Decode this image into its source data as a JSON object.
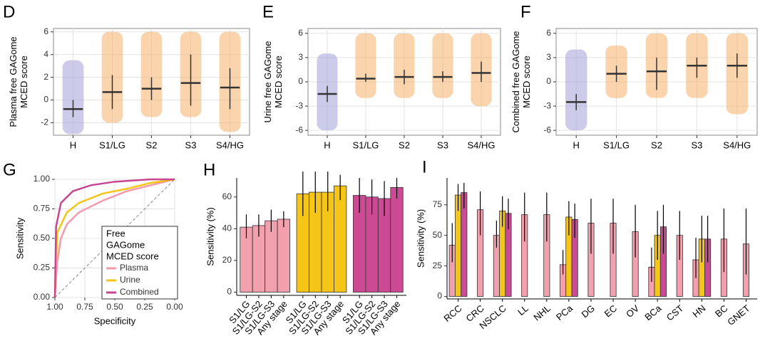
{
  "chart_data": [
    {
      "type": "crossbar",
      "panel": "D",
      "ylabel": [
        "Plasma free GAGome",
        "MCED score"
      ],
      "categories": [
        "H",
        "S1/LG",
        "S2",
        "S3",
        "S4/HG"
      ],
      "colors": [
        "#a3a3d8",
        "#f5b06a",
        "#f5b06a",
        "#f5b06a",
        "#f5b06a"
      ],
      "values": [
        -0.8,
        0.7,
        1.0,
        1.5,
        1.1
      ],
      "low": [
        -1.5,
        -0.8,
        0,
        -0.5,
        -0.8
      ],
      "high": [
        0,
        2.2,
        2,
        4,
        2.8
      ],
      "point_min": [
        -3,
        -2,
        -1.5,
        -1.5,
        -2.8
      ],
      "point_max": [
        3.5,
        6,
        6,
        6,
        6
      ],
      "ylim": [
        -3.1,
        6.3
      ],
      "yticks": [
        -2,
        0,
        2,
        4,
        6
      ],
      "grid": true
    },
    {
      "type": "crossbar",
      "panel": "E",
      "ylabel": [
        "Urine free GAGome",
        "MCED score"
      ],
      "categories": [
        "H",
        "S1/LG",
        "S2",
        "S3",
        "S4/HG"
      ],
      "colors": [
        "#a3a3d8",
        "#f5b06a",
        "#f5b06a",
        "#f5b06a",
        "#f5b06a"
      ],
      "values": [
        -1.5,
        0.4,
        0.6,
        0.6,
        1.1
      ],
      "low": [
        -2.5,
        0,
        -0.3,
        0,
        0
      ],
      "high": [
        -0.5,
        1,
        1.5,
        1.3,
        2.5
      ],
      "point_min": [
        -6,
        -2,
        -2,
        -2,
        -3
      ],
      "point_max": [
        3.5,
        6,
        6,
        6,
        6
      ],
      "ylim": [
        -6.6,
        6.6
      ],
      "yticks": [
        -6,
        -3,
        0,
        3,
        6
      ],
      "grid": true
    },
    {
      "type": "crossbar",
      "panel": "F",
      "ylabel": [
        "Combined free GAGome",
        "MCED score"
      ],
      "categories": [
        "H",
        "S1/LG",
        "S2",
        "S3",
        "S4/HG"
      ],
      "colors": [
        "#a3a3d8",
        "#f5b06a",
        "#f5b06a",
        "#f5b06a",
        "#f5b06a"
      ],
      "values": [
        -2.5,
        1.0,
        1.3,
        2.0,
        2.0
      ],
      "low": [
        -3.5,
        0,
        -1,
        0.5,
        0.5
      ],
      "high": [
        -1.5,
        2,
        3,
        3,
        3.5
      ],
      "point_min": [
        -6,
        -2,
        -2,
        -2,
        -4
      ],
      "point_max": [
        4,
        4.5,
        6,
        6,
        6
      ],
      "ylim": [
        -6.6,
        6.6
      ],
      "yticks": [
        -6,
        -3,
        0,
        3,
        6
      ],
      "grid": true
    },
    {
      "type": "line",
      "panel": "G",
      "xlabel": "Specificity",
      "ylabel": [
        "Sensitivity"
      ],
      "legend_title": [
        "Free",
        "GAGome",
        "MCED score"
      ],
      "series": [
        {
          "name": "Plasma",
          "color": "#f49aab",
          "x": [
            1,
            0.98,
            0.95,
            0.9,
            0.8,
            0.6,
            0.4,
            0.2,
            0
          ],
          "values": [
            0,
            0.3,
            0.5,
            0.62,
            0.72,
            0.82,
            0.9,
            0.95,
            1
          ]
        },
        {
          "name": "Urine",
          "color": "#f5c518",
          "x": [
            1,
            0.98,
            0.9,
            0.8,
            0.6,
            0.4,
            0.2,
            0
          ],
          "values": [
            0,
            0.55,
            0.72,
            0.8,
            0.88,
            0.92,
            0.97,
            1
          ]
        },
        {
          "name": "Combined",
          "color": "#c84592",
          "x": [
            1,
            0.99,
            0.95,
            0.85,
            0.7,
            0.5,
            0.2,
            0
          ],
          "values": [
            0,
            0.6,
            0.8,
            0.9,
            0.95,
            0.98,
            1,
            1
          ]
        }
      ],
      "xlim": [
        1,
        0
      ],
      "ylim": [
        0,
        1
      ],
      "xticks": [
        {
          "value": 1,
          "label": "1.00"
        },
        {
          "value": 0.75,
          "label": "0.75"
        },
        {
          "value": 0.5,
          "label": "0.50"
        },
        {
          "value": 0.25,
          "label": "0.25"
        },
        {
          "value": 0,
          "label": "0.00"
        }
      ],
      "yticks": [
        {
          "value": 0,
          "label": "0.00"
        },
        {
          "value": 0.25,
          "label": "0.25"
        },
        {
          "value": 0.5,
          "label": "0.50"
        },
        {
          "value": 0.75,
          "label": "0.75"
        },
        {
          "value": 1,
          "label": "1.00"
        }
      ],
      "grid": true,
      "legend": "bottom-right"
    },
    {
      "type": "groupbar",
      "panel": "H",
      "ylabel": [
        "Sensitivity (%)"
      ],
      "categories": [
        "S1/LG",
        "S1/LG-S2",
        "S1/LG-S3",
        "Any stage"
      ],
      "series": [
        {
          "name": "Plasma",
          "color": "#f29fae",
          "values": [
            41,
            42,
            45,
            46
          ],
          "low": [
            34,
            35,
            38,
            41
          ],
          "high": [
            49,
            49,
            52,
            51
          ]
        },
        {
          "name": "Urine",
          "color": "#f5c518",
          "values": [
            62,
            63,
            63,
            67
          ],
          "low": [
            48,
            50,
            51,
            58
          ],
          "high": [
            76,
            76,
            76,
            74
          ]
        },
        {
          "name": "Combined",
          "color": "#cc4a94",
          "values": [
            61,
            60,
            59,
            66
          ],
          "low": [
            50,
            49,
            48,
            59
          ],
          "high": [
            72,
            71,
            70,
            72
          ]
        }
      ],
      "ylim": [
        -2,
        72
      ],
      "yticks": [
        0,
        20,
        40,
        60
      ],
      "grid": false
    },
    {
      "type": "bar",
      "panel": "I",
      "ylabel": [
        "Sensitivity (%)"
      ],
      "categories": [
        "RCC",
        "CRC",
        "NSCLC",
        "LL",
        "NHL",
        "PCa",
        "DG",
        "EC",
        "OV",
        "BCa",
        "CST",
        "HN",
        "BC",
        "GNET"
      ],
      "series": [
        {
          "name": "Plasma",
          "color": "#f29fae",
          "values": [
            42,
            71,
            50,
            67,
            67,
            26,
            60,
            60,
            53,
            24,
            50,
            30,
            47,
            43
          ],
          "low": [
            28,
            50,
            40,
            45,
            45,
            18,
            35,
            35,
            32,
            12,
            30,
            15,
            20,
            18
          ],
          "high": [
            60,
            86,
            62,
            85,
            85,
            38,
            80,
            80,
            75,
            40,
            70,
            48,
            72,
            72
          ]
        },
        {
          "name": "Urine",
          "color": "#f5c518",
          "values": [
            83,
            null,
            70,
            null,
            null,
            65,
            null,
            null,
            null,
            50,
            null,
            47,
            null,
            null
          ],
          "low": [
            70,
            null,
            57,
            null,
            null,
            50,
            null,
            null,
            null,
            30,
            null,
            28,
            null,
            null
          ],
          "high": [
            92,
            null,
            82,
            null,
            null,
            78,
            null,
            null,
            null,
            70,
            null,
            66,
            null,
            null
          ]
        },
        {
          "name": "Combined",
          "color": "#cc4a94",
          "values": [
            85,
            null,
            68,
            null,
            null,
            63,
            null,
            null,
            null,
            57,
            null,
            47,
            null,
            null
          ],
          "low": [
            72,
            null,
            55,
            null,
            null,
            48,
            null,
            null,
            null,
            35,
            null,
            28,
            null,
            null
          ],
          "high": [
            93,
            null,
            80,
            null,
            null,
            76,
            null,
            null,
            null,
            75,
            null,
            66,
            null,
            null
          ]
        }
      ],
      "ylim": [
        -2,
        97
      ],
      "yticks": [
        0,
        25,
        50,
        75
      ],
      "grid": false
    }
  ]
}
